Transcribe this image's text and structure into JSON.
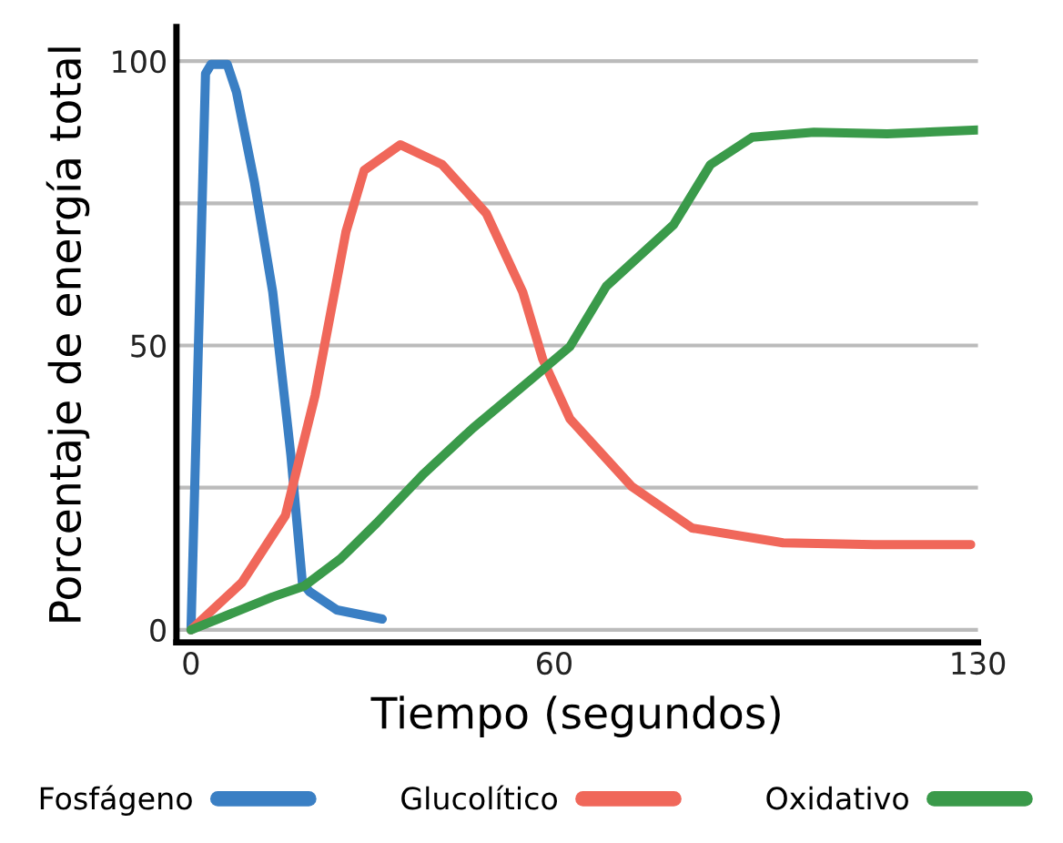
{
  "chart_data": {
    "type": "line",
    "xlabel": "Tiempo (segundos)",
    "ylabel": "Porcentaje de energía total",
    "xlim": [
      -2.4,
      130
    ],
    "ylim": [
      -2.2,
      106
    ],
    "xticks": [
      0,
      60,
      130
    ],
    "yticks": [
      0,
      {
        "value": 25,
        "label": null
      },
      50,
      {
        "value": 75,
        "label": null
      },
      100
    ],
    "grid": "y",
    "legend": "bottom",
    "marker": "none",
    "line_style": "solid",
    "series": [
      {
        "name": "Fosfágeno",
        "color": "#3a7fc4",
        "x": [
          0,
          2.4,
          3.3,
          6,
          7.5,
          10.5,
          13.5,
          16.5,
          18.4,
          19.6,
          24.1,
          31.6
        ],
        "values": [
          0,
          97.8,
          99.4,
          99.4,
          94.6,
          78.6,
          59.4,
          30.7,
          8.3,
          6.7,
          3.5,
          1.9
        ]
      },
      {
        "name": "Glucolítico",
        "color": "#f0675a",
        "x": [
          0,
          8.4,
          15.6,
          20.5,
          25.6,
          28.6,
          34.6,
          41.5,
          48.8,
          54.8,
          58.1,
          62.6,
          72.8,
          82.8,
          97.8,
          112.8,
          128.8
        ],
        "values": [
          0,
          8.3,
          20.1,
          41.2,
          70,
          80.8,
          85.3,
          81.8,
          73.2,
          59.4,
          47.6,
          37.1,
          25.2,
          17.9,
          15.3,
          15,
          15
        ]
      },
      {
        "name": "Oxidativo",
        "color": "#3a9a4a",
        "x": [
          0,
          13.5,
          18.7,
          24.7,
          30.7,
          38.5,
          46.6,
          56.6,
          62.6,
          68.6,
          79.7,
          85.8,
          92.7,
          102.9,
          115,
          130
        ],
        "values": [
          0,
          5.8,
          7.7,
          12.5,
          18.8,
          27.5,
          35.5,
          44.4,
          49.8,
          60.4,
          71.2,
          81.8,
          86.6,
          87.5,
          87.2,
          87.9
        ]
      }
    ]
  }
}
